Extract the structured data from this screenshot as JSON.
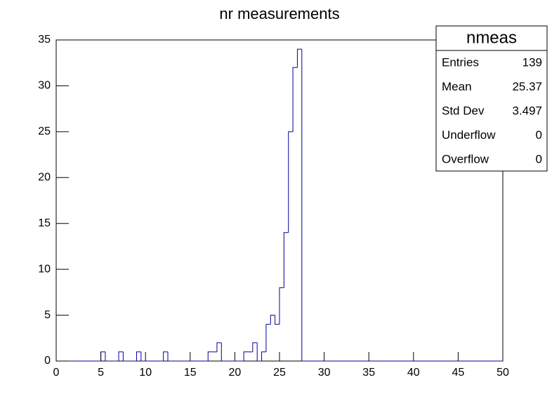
{
  "chart_data": {
    "type": "histogram",
    "title": "nr measurements",
    "bins": [
      0,
      0.5,
      1,
      1.5,
      2,
      2.5,
      3,
      3.5,
      4,
      4.5,
      5,
      5.5,
      6,
      6.5,
      7,
      7.5,
      8,
      8.5,
      9,
      9.5,
      10,
      10.5,
      11,
      11.5,
      12,
      12.5,
      13,
      13.5,
      14,
      14.5,
      15,
      15.5,
      16,
      16.5,
      17,
      17.5,
      18,
      18.5,
      19,
      19.5,
      20,
      20.5,
      21,
      21.5,
      22,
      22.5,
      23,
      23.5,
      24,
      24.5,
      25,
      25.5,
      26,
      26.5,
      27,
      27.5,
      28,
      28.5,
      29,
      29.5,
      30,
      30.5,
      31,
      31.5,
      32,
      32.5,
      33,
      33.5,
      34,
      34.5,
      35,
      35.5,
      36,
      36.5,
      37,
      37.5,
      38,
      38.5,
      39,
      39.5,
      40,
      40.5,
      41,
      41.5,
      42,
      42.5,
      43,
      43.5,
      44,
      44.5,
      45,
      45.5,
      46,
      46.5,
      47,
      47.5,
      48,
      48.5,
      49,
      49.5,
      50
    ],
    "values": [
      0,
      0,
      0,
      0,
      0,
      0,
      0,
      0,
      0,
      0,
      1,
      0,
      0,
      0,
      1,
      0,
      0,
      0,
      1,
      0,
      0,
      0,
      0,
      0,
      1,
      0,
      0,
      0,
      0,
      0,
      0,
      0,
      0,
      0,
      1,
      1,
      2,
      0,
      0,
      0,
      0,
      0,
      1,
      1,
      2,
      0,
      1,
      4,
      5,
      4,
      8,
      14,
      25,
      32,
      34,
      0,
      0,
      0,
      0,
      0,
      0,
      0,
      0,
      0,
      0,
      0,
      0,
      0,
      0,
      0,
      0,
      0,
      0,
      0,
      0,
      0,
      0,
      0,
      0,
      0,
      0,
      0,
      0,
      0,
      0,
      0,
      0,
      0,
      0,
      0,
      0,
      0,
      0,
      0,
      0,
      0,
      0,
      0,
      0,
      0
    ],
    "color": "#000099",
    "xlim": [
      0,
      50
    ],
    "xticks": [
      0,
      5,
      10,
      15,
      20,
      25,
      30,
      35,
      40,
      45,
      50
    ],
    "ylim": [
      0,
      35
    ],
    "yticks": [
      0,
      5,
      10,
      15,
      20,
      25,
      30,
      35
    ],
    "stats": {
      "title": "nmeas",
      "rows": [
        [
          "Entries",
          139
        ],
        [
          "Mean",
          25.37
        ],
        [
          "Std Dev",
          3.497
        ],
        [
          "Underflow",
          0
        ],
        [
          "Overflow",
          0
        ]
      ]
    }
  }
}
